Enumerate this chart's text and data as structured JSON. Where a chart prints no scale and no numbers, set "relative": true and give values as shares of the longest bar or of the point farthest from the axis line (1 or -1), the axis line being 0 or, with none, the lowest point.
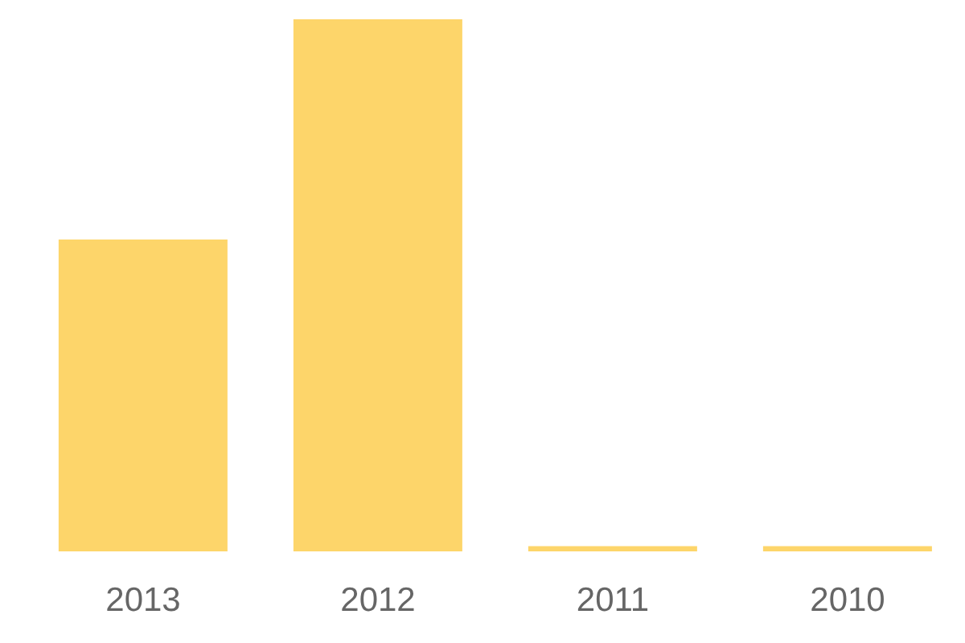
{
  "chart_data": {
    "type": "bar",
    "relative": true,
    "categories": [
      "2013",
      "2012",
      "2011",
      "2010"
    ],
    "values": [
      0.586,
      1,
      0.01,
      0.01
    ],
    "color": "#fdd56a",
    "grid": false
  }
}
